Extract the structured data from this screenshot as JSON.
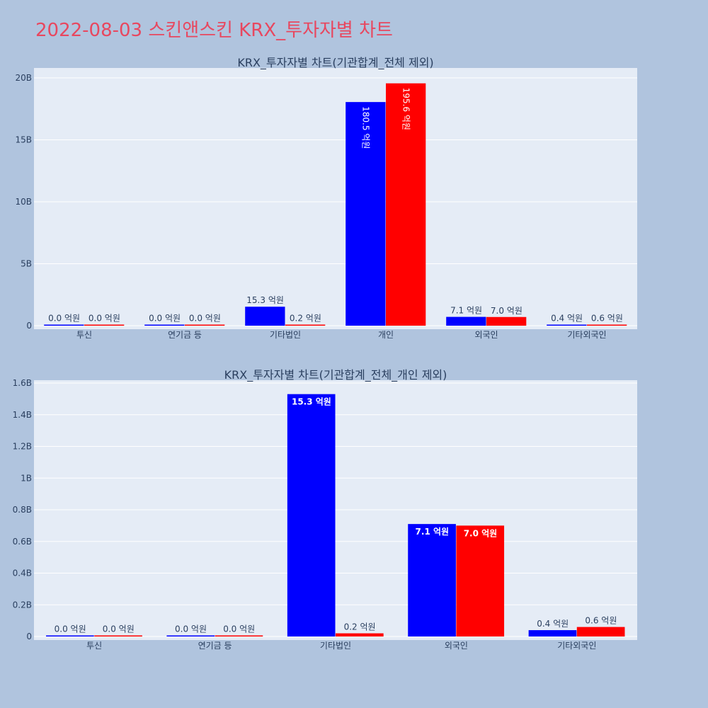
{
  "page": {
    "title": "2022-08-03 스킨앤스킨 KRX_투자자별 차트",
    "title_color": "#e8475f",
    "background": "#b0c4de",
    "plot_background": "#e5ecf6"
  },
  "chart_data": [
    {
      "type": "bar",
      "title": "KRX_투자자별 차트(기관합계_전체 제외)",
      "categories": [
        "투신",
        "연기금 등",
        "기타법인",
        "개인",
        "외국인",
        "기타외국인"
      ],
      "series": [
        {
          "color": "#0000ff",
          "values": [
            0,
            0,
            1530000000,
            18050000000,
            710000000,
            40000000
          ],
          "labels": [
            "0.0 억원",
            "0.0 억원",
            "15.3 억원",
            "180.5 억원",
            "7.1 억원",
            "0.4 억원"
          ]
        },
        {
          "color": "#ff0000",
          "values": [
            0,
            0,
            20000000,
            19560000000,
            700000000,
            60000000
          ],
          "labels": [
            "0.0 억원",
            "0.0 억원",
            "0.2 억원",
            "195.6 억원",
            "7.0 억원",
            "0.6 억원"
          ]
        }
      ],
      "ylim": [
        0,
        20000000000
      ],
      "yticks": [
        {
          "value": 0,
          "label": "0"
        },
        {
          "value": 5000000000,
          "label": "5B"
        },
        {
          "value": 10000000000,
          "label": "10B"
        },
        {
          "value": 15000000000,
          "label": "15B"
        },
        {
          "value": 20000000000,
          "label": "20B"
        }
      ],
      "grid": true,
      "legend": "none"
    },
    {
      "type": "bar",
      "title": "KRX_투자자별 차트(기관합계_전체_개인 제외)",
      "categories": [
        "투신",
        "연기금 등",
        "기타법인",
        "외국인",
        "기타외국인"
      ],
      "series": [
        {
          "color": "#0000ff",
          "values": [
            0,
            0,
            1530000000,
            710000000,
            40000000
          ],
          "labels": [
            "0.0 억원",
            "0.0 억원",
            "15.3 억원",
            "7.1 억원",
            "0.4 억원"
          ]
        },
        {
          "color": "#ff0000",
          "values": [
            0,
            0,
            20000000,
            700000000,
            60000000
          ],
          "labels": [
            "0.0 억원",
            "0.0 억원",
            "0.2 억원",
            "7.0 억원",
            "0.6 억원"
          ]
        }
      ],
      "ylim": [
        0,
        1600000000
      ],
      "yticks": [
        {
          "value": 0,
          "label": "0"
        },
        {
          "value": 200000000,
          "label": "0.2B"
        },
        {
          "value": 400000000,
          "label": "0.4B"
        },
        {
          "value": 600000000,
          "label": "0.6B"
        },
        {
          "value": 800000000,
          "label": "0.8B"
        },
        {
          "value": 1000000000,
          "label": "1B"
        },
        {
          "value": 1200000000,
          "label": "1.2B"
        },
        {
          "value": 1400000000,
          "label": "1.4B"
        },
        {
          "value": 1600000000,
          "label": "1.6B"
        }
      ],
      "grid": true,
      "legend": "none"
    }
  ]
}
